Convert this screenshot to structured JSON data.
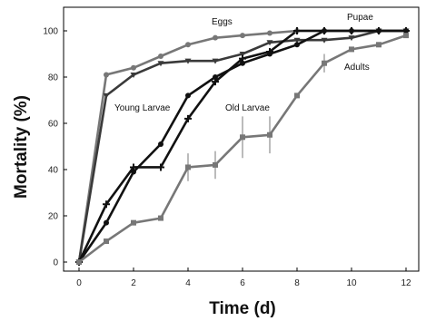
{
  "chart_data": {
    "type": "line",
    "xlabel": "Time (d)",
    "ylabel": "Mortality (%)",
    "xlim": [
      0,
      12
    ],
    "ylim": [
      0,
      100
    ],
    "x_ticks": [
      "0",
      "2",
      "4",
      "6",
      "8",
      "10",
      "12"
    ],
    "y_ticks": [
      "0",
      "20",
      "40",
      "60",
      "80",
      "100"
    ],
    "grid": false,
    "legend": "none",
    "series": [
      {
        "name": "Eggs",
        "color": "#777777",
        "marker": "circle",
        "x": [
          0,
          1,
          2,
          3,
          4,
          5,
          6,
          7,
          8,
          9,
          10,
          11,
          12
        ],
        "y": [
          0,
          81,
          84,
          89,
          94,
          97,
          98,
          99,
          100,
          100,
          100,
          100,
          100
        ]
      },
      {
        "name": "Young Larvae",
        "color": "#3a3a3a",
        "marker": "triangle-down",
        "x": [
          0,
          1,
          2,
          3,
          4,
          5,
          6,
          7,
          8,
          9,
          10,
          11,
          12
        ],
        "y": [
          0,
          72,
          81,
          86,
          87,
          87,
          90,
          95,
          96,
          96,
          97,
          100,
          100
        ]
      },
      {
        "name": "Old Larvae",
        "color": "#111111",
        "marker": "plus",
        "x": [
          0,
          1,
          2,
          3,
          4,
          5,
          6,
          7,
          8,
          9,
          10,
          11,
          12
        ],
        "y": [
          0,
          25,
          41,
          41,
          62,
          78,
          88,
          91,
          100,
          100,
          100,
          100,
          100
        ]
      },
      {
        "name": "Pupae",
        "color": "#111111",
        "marker": "circle",
        "x": [
          0,
          1,
          2,
          3,
          4,
          5,
          6,
          7,
          8,
          9,
          10,
          11,
          12
        ],
        "y": [
          0,
          17,
          39,
          51,
          72,
          80,
          86,
          90,
          94,
          100,
          100,
          100,
          100
        ]
      },
      {
        "name": "Adults",
        "color": "#777777",
        "marker": "square",
        "x": [
          0,
          1,
          2,
          3,
          4,
          5,
          6,
          7,
          8,
          9,
          10,
          11,
          12
        ],
        "y": [
          0,
          9,
          17,
          19,
          41,
          42,
          54,
          55,
          72,
          86,
          92,
          94,
          98
        ],
        "error": [
          0,
          0,
          0,
          0,
          6,
          6,
          9,
          8,
          0,
          4,
          0,
          0,
          0
        ]
      }
    ],
    "annotations": [
      {
        "text": "Eggs",
        "series": "Eggs"
      },
      {
        "text": "Pupae",
        "series": "Pupae"
      },
      {
        "text": "Young Larvae",
        "series": "Young Larvae"
      },
      {
        "text": "Old Larvae",
        "series": "Old Larvae"
      },
      {
        "text": "Adults",
        "series": "Adults"
      }
    ]
  }
}
